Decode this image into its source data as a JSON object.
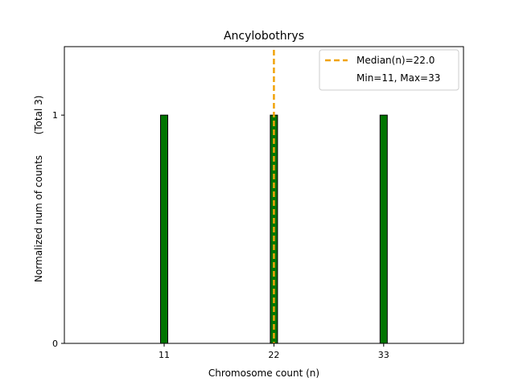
{
  "chart_data": {
    "type": "bar",
    "title": "Ancylobothrys",
    "xlabel": "Chromosome count (n)",
    "ylabel": "Normalized num of counts",
    "ylabel_secondary": "(Total 3)",
    "x": [
      11,
      22,
      33
    ],
    "values": [
      1,
      1,
      1
    ],
    "xticks": [
      11,
      22,
      33
    ],
    "yticks": [
      0,
      1
    ],
    "xlim": [
      1,
      41
    ],
    "ylim": [
      0,
      1.3
    ],
    "bar_color": "#007500",
    "bar_edge_color": "#000000",
    "median": 22.0,
    "median_color": "#f0a30a",
    "legend": {
      "position": "top-right",
      "entries": [
        "Median(n)=22.0",
        "Min=11, Max=33"
      ]
    }
  }
}
